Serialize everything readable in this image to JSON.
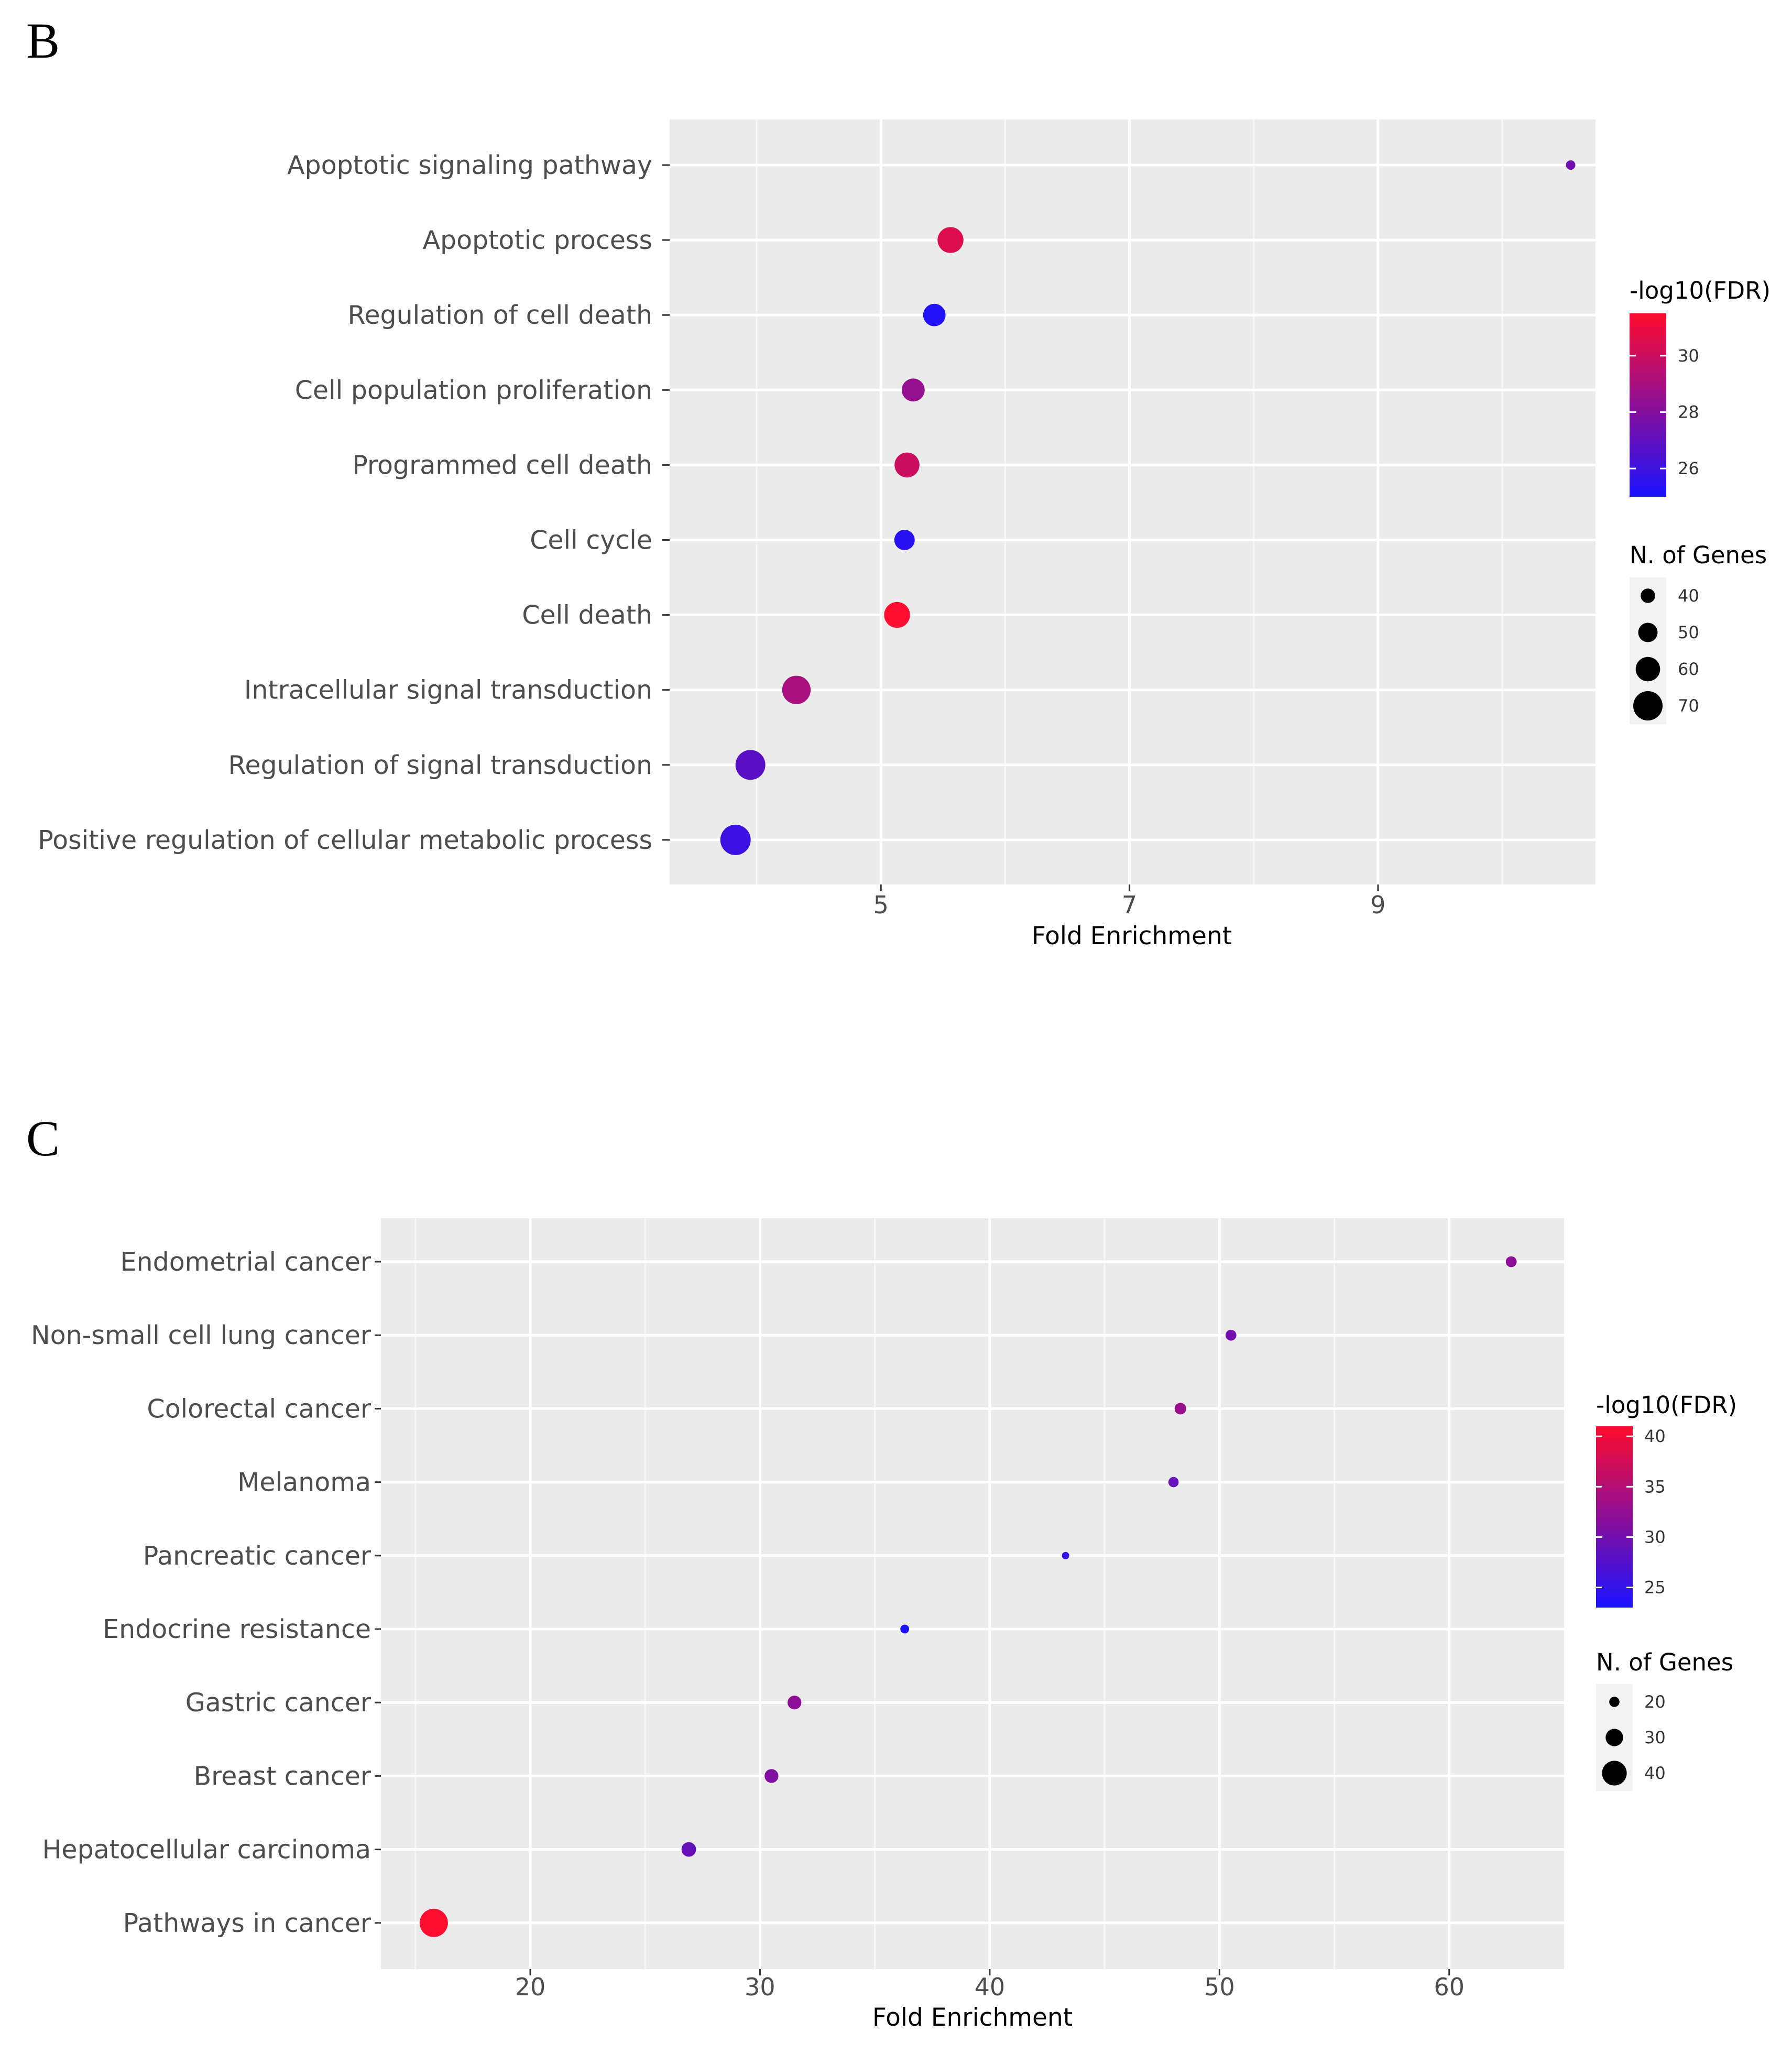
{
  "chart_data": [
    {
      "panel": "B",
      "type": "scatter",
      "xlabel": "Fold Enrichment",
      "ylabel": "",
      "xlim": [
        3.3,
        10.75
      ],
      "x_ticks": [
        5,
        7,
        9
      ],
      "grid": true,
      "categories": [
        "Apoptotic signaling pathway",
        "Apoptotic process",
        "Regulation of cell death",
        "Cell population proliferation",
        "Programmed cell death",
        "Cell cycle",
        "Cell death",
        "Intracellular signal transduction",
        "Regulation of signal transduction",
        "Positive regulation of cellular metabolic process"
      ],
      "fold_enrichment": [
        10.55,
        5.56,
        5.43,
        5.26,
        5.21,
        5.19,
        5.13,
        4.32,
        3.95,
        3.83
      ],
      "neg_log10_fdr": [
        27.5,
        30.5,
        25.2,
        28.5,
        30.0,
        25.4,
        31.5,
        29.0,
        26.8,
        25.9
      ],
      "n_genes": [
        30,
        63,
        56,
        57,
        61,
        52,
        63,
        68,
        71,
        72
      ],
      "color_legend": {
        "title": "-log10(FDR)",
        "ticks": [
          26,
          28,
          30
        ],
        "range": [
          25,
          31.5
        ],
        "low_color": "#1a12ff",
        "high_color": "#ff0c2e"
      },
      "size_legend": {
        "title": "N. of Genes",
        "ticks": [
          40,
          50,
          60,
          70
        ]
      },
      "legend_position": "right"
    },
    {
      "panel": "C",
      "type": "scatter",
      "xlabel": "Fold Enrichment",
      "ylabel": "",
      "xlim": [
        13.5,
        65
      ],
      "x_ticks": [
        20,
        30,
        40,
        50,
        60
      ],
      "grid": true,
      "categories": [
        "Endometrial cancer",
        "Non-small cell lung cancer",
        "Colorectal cancer",
        "Melanoma",
        "Pancreatic cancer",
        "Endocrine resistance",
        "Gastric cancer",
        "Breast cancer",
        "Hepatocellular carcinoma",
        "Pathways in cancer"
      ],
      "fold_enrichment": [
        62.7,
        50.5,
        48.3,
        48.0,
        43.3,
        36.3,
        31.5,
        30.5,
        26.9,
        15.8
      ],
      "neg_log10_fdr": [
        32,
        30,
        33,
        29,
        25,
        23,
        32,
        31,
        29,
        41
      ],
      "n_genes": [
        21,
        21,
        22,
        20,
        16,
        18,
        25,
        25,
        26,
        45
      ],
      "color_legend": {
        "title": "-log10(FDR)",
        "ticks": [
          25,
          30,
          35,
          40
        ],
        "range": [
          23,
          41
        ],
        "low_color": "#1a12ff",
        "high_color": "#ff0c2e"
      },
      "size_legend": {
        "title": "N. of Genes",
        "ticks": [
          20,
          30,
          40
        ]
      },
      "legend_position": "right"
    }
  ],
  "panels": [
    {
      "label": "B"
    },
    {
      "label": "C"
    }
  ]
}
